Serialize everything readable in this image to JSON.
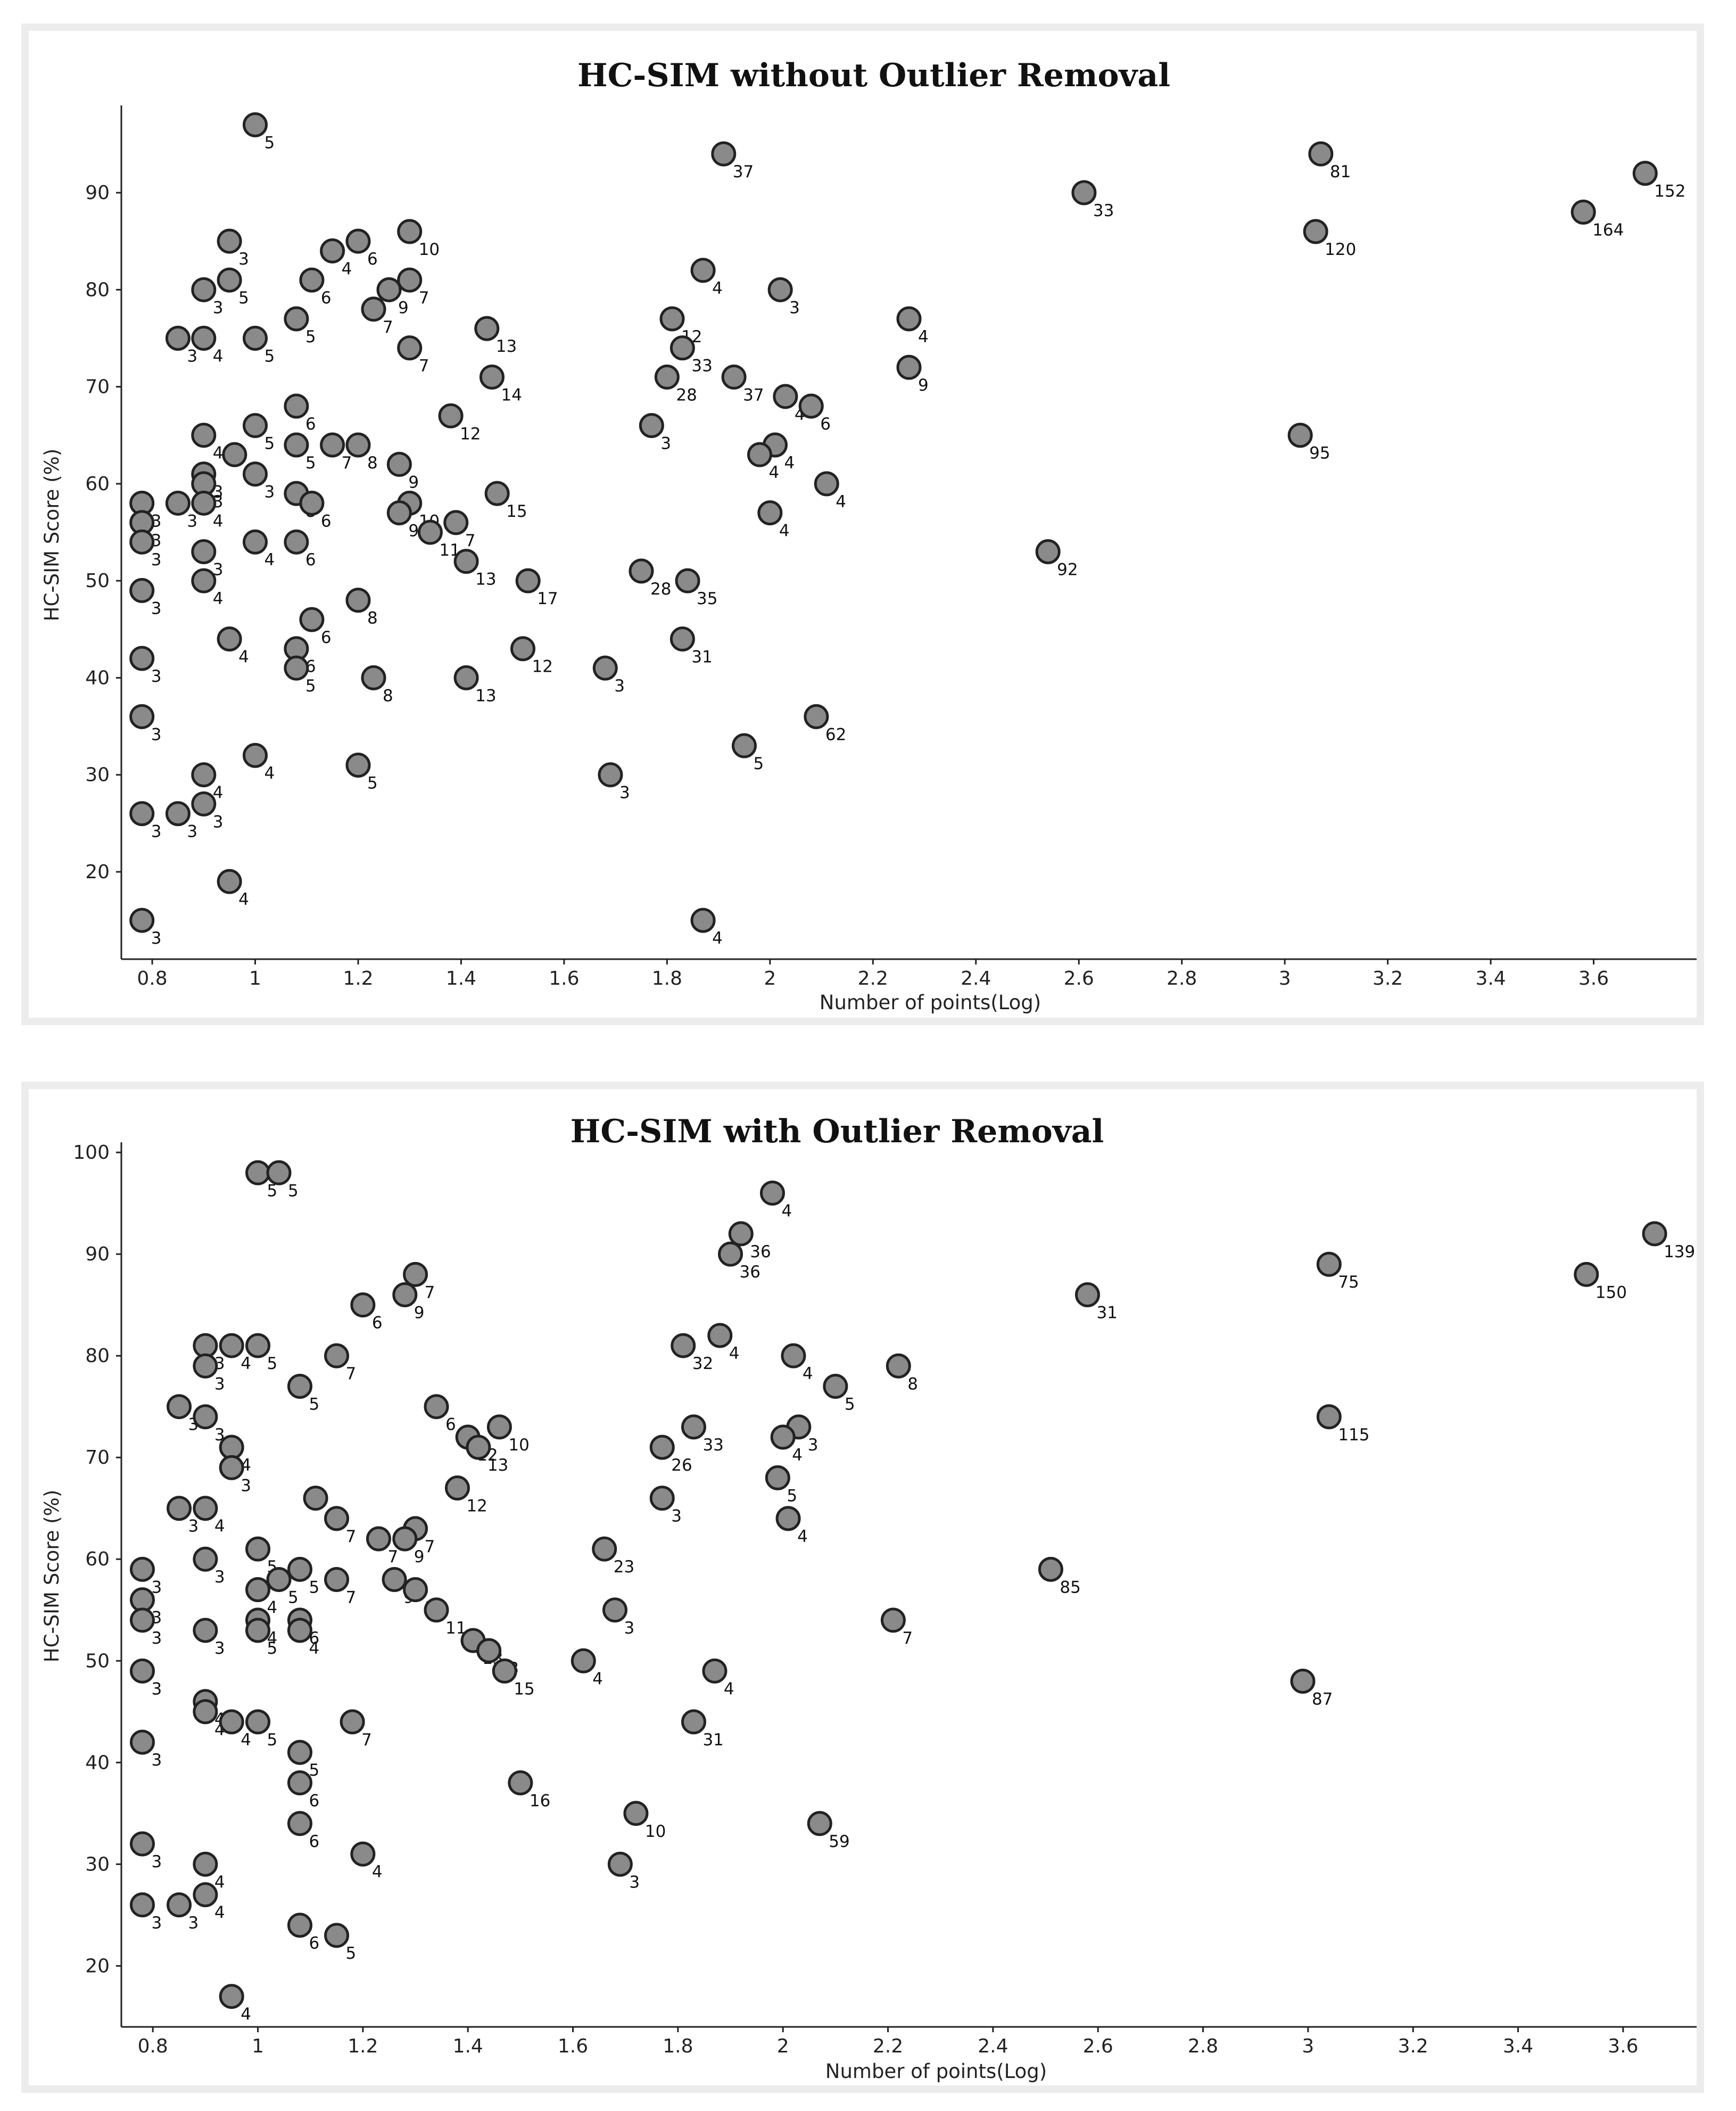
{
  "chart_data": [
    {
      "type": "scatter",
      "title": "HC-SIM without Outlier Removal",
      "xlabel": "Number of points(Log)",
      "ylabel": "HC-SIM Score (%)",
      "xlim": [
        0.74,
        3.8
      ],
      "ylim": [
        11,
        99
      ],
      "x_ticks": [
        0.8,
        1,
        1.2,
        1.4,
        1.6,
        1.8,
        2,
        2.2,
        2.4,
        2.6,
        2.8,
        3,
        3.2,
        3.4,
        3.6
      ],
      "y_ticks": [
        20,
        30,
        40,
        50,
        60,
        70,
        80,
        90
      ],
      "grid": false,
      "marker_fill": "#8a8a8a",
      "marker_edge": "#222222",
      "points": [
        {
          "x": 1.0,
          "y": 97,
          "label": "5"
        },
        {
          "x": 1.91,
          "y": 94,
          "label": "37"
        },
        {
          "x": 3.07,
          "y": 94,
          "label": "81"
        },
        {
          "x": 3.7,
          "y": 92,
          "label": "152"
        },
        {
          "x": 2.61,
          "y": 90,
          "label": "33"
        },
        {
          "x": 3.58,
          "y": 88,
          "label": "164"
        },
        {
          "x": 3.06,
          "y": 86,
          "label": "120"
        },
        {
          "x": 1.3,
          "y": 86,
          "label": "10"
        },
        {
          "x": 0.95,
          "y": 85,
          "label": "3"
        },
        {
          "x": 1.2,
          "y": 85,
          "label": "6"
        },
        {
          "x": 1.15,
          "y": 84,
          "label": "4"
        },
        {
          "x": 1.87,
          "y": 82,
          "label": "4"
        },
        {
          "x": 0.95,
          "y": 81,
          "label": "5"
        },
        {
          "x": 1.11,
          "y": 81,
          "label": "6"
        },
        {
          "x": 1.3,
          "y": 81,
          "label": "7"
        },
        {
          "x": 0.9,
          "y": 80,
          "label": "3"
        },
        {
          "x": 1.26,
          "y": 80,
          "label": "9"
        },
        {
          "x": 2.02,
          "y": 80,
          "label": "3"
        },
        {
          "x": 1.23,
          "y": 78,
          "label": "7"
        },
        {
          "x": 1.08,
          "y": 77,
          "label": "5"
        },
        {
          "x": 1.81,
          "y": 77,
          "label": "12"
        },
        {
          "x": 2.27,
          "y": 77,
          "label": "4"
        },
        {
          "x": 1.45,
          "y": 76,
          "label": "13"
        },
        {
          "x": 0.85,
          "y": 75,
          "label": "3"
        },
        {
          "x": 0.9,
          "y": 75,
          "label": "4"
        },
        {
          "x": 1.0,
          "y": 75,
          "label": "5"
        },
        {
          "x": 1.3,
          "y": 74,
          "label": "7"
        },
        {
          "x": 1.83,
          "y": 74,
          "label": "33"
        },
        {
          "x": 2.27,
          "y": 72,
          "label": "9"
        },
        {
          "x": 1.46,
          "y": 71,
          "label": "14"
        },
        {
          "x": 1.8,
          "y": 71,
          "label": "28"
        },
        {
          "x": 1.93,
          "y": 71,
          "label": "37"
        },
        {
          "x": 2.03,
          "y": 69,
          "label": "4"
        },
        {
          "x": 2.08,
          "y": 68,
          "label": "6"
        },
        {
          "x": 1.08,
          "y": 68,
          "label": "6"
        },
        {
          "x": 1.38,
          "y": 67,
          "label": "12"
        },
        {
          "x": 1.0,
          "y": 66,
          "label": "5"
        },
        {
          "x": 1.77,
          "y": 66,
          "label": "3"
        },
        {
          "x": 3.03,
          "y": 65,
          "label": "95"
        },
        {
          "x": 0.9,
          "y": 65,
          "label": "4"
        },
        {
          "x": 1.08,
          "y": 64,
          "label": "5"
        },
        {
          "x": 1.15,
          "y": 64,
          "label": "7"
        },
        {
          "x": 1.2,
          "y": 64,
          "label": "8"
        },
        {
          "x": 2.01,
          "y": 64,
          "label": "4"
        },
        {
          "x": 0.96,
          "y": 63,
          "label": "4"
        },
        {
          "x": 1.98,
          "y": 63,
          "label": "4"
        },
        {
          "x": 1.28,
          "y": 62,
          "label": "9"
        },
        {
          "x": 0.9,
          "y": 61,
          "label": "3"
        },
        {
          "x": 1.0,
          "y": 61,
          "label": "3"
        },
        {
          "x": 0.9,
          "y": 60,
          "label": "3"
        },
        {
          "x": 2.11,
          "y": 60,
          "label": "4"
        },
        {
          "x": 1.08,
          "y": 59,
          "label": "8"
        },
        {
          "x": 1.47,
          "y": 59,
          "label": "15"
        },
        {
          "x": 0.78,
          "y": 58,
          "label": "3"
        },
        {
          "x": 0.85,
          "y": 58,
          "label": "3"
        },
        {
          "x": 0.9,
          "y": 58,
          "label": "4"
        },
        {
          "x": 1.11,
          "y": 58,
          "label": "6"
        },
        {
          "x": 1.3,
          "y": 58,
          "label": "10"
        },
        {
          "x": 1.28,
          "y": 57,
          "label": "9"
        },
        {
          "x": 2.0,
          "y": 57,
          "label": "4"
        },
        {
          "x": 0.78,
          "y": 56,
          "label": "3"
        },
        {
          "x": 1.39,
          "y": 56,
          "label": "7"
        },
        {
          "x": 1.34,
          "y": 55,
          "label": "11"
        },
        {
          "x": 0.78,
          "y": 54,
          "label": "3"
        },
        {
          "x": 1.0,
          "y": 54,
          "label": "4"
        },
        {
          "x": 1.08,
          "y": 54,
          "label": "6"
        },
        {
          "x": 2.54,
          "y": 53,
          "label": "92"
        },
        {
          "x": 0.9,
          "y": 53,
          "label": "3"
        },
        {
          "x": 1.41,
          "y": 52,
          "label": "13"
        },
        {
          "x": 1.75,
          "y": 51,
          "label": "28"
        },
        {
          "x": 0.9,
          "y": 50,
          "label": "4"
        },
        {
          "x": 1.53,
          "y": 50,
          "label": "17"
        },
        {
          "x": 1.84,
          "y": 50,
          "label": "35"
        },
        {
          "x": 0.78,
          "y": 49,
          "label": "3"
        },
        {
          "x": 1.2,
          "y": 48,
          "label": "8"
        },
        {
          "x": 1.11,
          "y": 46,
          "label": "6"
        },
        {
          "x": 0.95,
          "y": 44,
          "label": "4"
        },
        {
          "x": 1.83,
          "y": 44,
          "label": "31"
        },
        {
          "x": 1.08,
          "y": 43,
          "label": "6"
        },
        {
          "x": 1.52,
          "y": 43,
          "label": "12"
        },
        {
          "x": 0.78,
          "y": 42,
          "label": "3"
        },
        {
          "x": 1.08,
          "y": 41,
          "label": "5"
        },
        {
          "x": 1.68,
          "y": 41,
          "label": "3"
        },
        {
          "x": 1.23,
          "y": 40,
          "label": "8"
        },
        {
          "x": 1.41,
          "y": 40,
          "label": "13"
        },
        {
          "x": 0.78,
          "y": 36,
          "label": "3"
        },
        {
          "x": 2.09,
          "y": 36,
          "label": "62"
        },
        {
          "x": 1.95,
          "y": 33,
          "label": "5"
        },
        {
          "x": 1.0,
          "y": 32,
          "label": "4"
        },
        {
          "x": 1.2,
          "y": 31,
          "label": "5"
        },
        {
          "x": 0.9,
          "y": 30,
          "label": "4"
        },
        {
          "x": 1.69,
          "y": 30,
          "label": "3"
        },
        {
          "x": 0.9,
          "y": 27,
          "label": "3"
        },
        {
          "x": 0.78,
          "y": 26,
          "label": "3"
        },
        {
          "x": 0.85,
          "y": 26,
          "label": "3"
        },
        {
          "x": 0.95,
          "y": 19,
          "label": "4"
        },
        {
          "x": 0.78,
          "y": 15,
          "label": "3"
        },
        {
          "x": 1.87,
          "y": 15,
          "label": "4"
        }
      ]
    },
    {
      "type": "scatter",
      "title": "HC-SIM with Outlier Removal",
      "xlabel": "Number of points(Log)",
      "ylabel": "HC-SIM Score (%)",
      "xlim": [
        0.74,
        3.74
      ],
      "ylim": [
        14,
        101
      ],
      "x_ticks": [
        0.8,
        1,
        1.2,
        1.4,
        1.6,
        1.8,
        2,
        2.2,
        2.4,
        2.6,
        2.8,
        3,
        3.2,
        3.4,
        3.6
      ],
      "y_ticks": [
        20,
        30,
        40,
        50,
        60,
        70,
        80,
        90,
        100
      ],
      "grid": false,
      "marker_fill": "#8a8a8a",
      "marker_edge": "#222222",
      "points": [
        {
          "x": 1.0,
          "y": 98,
          "label": "5"
        },
        {
          "x": 1.04,
          "y": 98,
          "label": "5"
        },
        {
          "x": 1.98,
          "y": 96,
          "label": "4"
        },
        {
          "x": 1.92,
          "y": 92,
          "label": "36"
        },
        {
          "x": 3.66,
          "y": 92,
          "label": "139"
        },
        {
          "x": 1.9,
          "y": 90,
          "label": "36"
        },
        {
          "x": 3.04,
          "y": 89,
          "label": "75"
        },
        {
          "x": 1.3,
          "y": 88,
          "label": "7"
        },
        {
          "x": 3.53,
          "y": 88,
          "label": "150"
        },
        {
          "x": 2.58,
          "y": 86,
          "label": "31"
        },
        {
          "x": 1.28,
          "y": 86,
          "label": "9"
        },
        {
          "x": 1.2,
          "y": 85,
          "label": "6"
        },
        {
          "x": 1.88,
          "y": 82,
          "label": "4"
        },
        {
          "x": 0.9,
          "y": 81,
          "label": "3"
        },
        {
          "x": 0.95,
          "y": 81,
          "label": "4"
        },
        {
          "x": 1.0,
          "y": 81,
          "label": "5"
        },
        {
          "x": 1.81,
          "y": 81,
          "label": "32"
        },
        {
          "x": 1.15,
          "y": 80,
          "label": "7"
        },
        {
          "x": 2.02,
          "y": 80,
          "label": "4"
        },
        {
          "x": 0.9,
          "y": 79,
          "label": "3"
        },
        {
          "x": 2.22,
          "y": 79,
          "label": "8"
        },
        {
          "x": 1.08,
          "y": 77,
          "label": "5"
        },
        {
          "x": 2.1,
          "y": 77,
          "label": "5"
        },
        {
          "x": 0.85,
          "y": 75,
          "label": "3"
        },
        {
          "x": 1.34,
          "y": 75,
          "label": "6"
        },
        {
          "x": 0.9,
          "y": 74,
          "label": "3"
        },
        {
          "x": 3.04,
          "y": 74,
          "label": "115"
        },
        {
          "x": 1.46,
          "y": 73,
          "label": "10"
        },
        {
          "x": 1.83,
          "y": 73,
          "label": "33"
        },
        {
          "x": 2.03,
          "y": 73,
          "label": "3"
        },
        {
          "x": 1.4,
          "y": 72,
          "label": "12"
        },
        {
          "x": 2.0,
          "y": 72,
          "label": "4"
        },
        {
          "x": 0.95,
          "y": 71,
          "label": "4"
        },
        {
          "x": 1.42,
          "y": 71,
          "label": "13"
        },
        {
          "x": 1.77,
          "y": 71,
          "label": "26"
        },
        {
          "x": 0.95,
          "y": 69,
          "label": "3"
        },
        {
          "x": 1.99,
          "y": 68,
          "label": "5"
        },
        {
          "x": 1.38,
          "y": 67,
          "label": "12"
        },
        {
          "x": 1.11,
          "y": 66,
          "label": "6"
        },
        {
          "x": 1.77,
          "y": 66,
          "label": "3"
        },
        {
          "x": 0.85,
          "y": 65,
          "label": "3"
        },
        {
          "x": 0.9,
          "y": 65,
          "label": "4"
        },
        {
          "x": 1.15,
          "y": 64,
          "label": "7"
        },
        {
          "x": 2.01,
          "y": 64,
          "label": "4"
        },
        {
          "x": 1.3,
          "y": 63,
          "label": "7"
        },
        {
          "x": 1.23,
          "y": 62,
          "label": "7"
        },
        {
          "x": 1.28,
          "y": 62,
          "label": "9"
        },
        {
          "x": 1.0,
          "y": 61,
          "label": "5"
        },
        {
          "x": 1.66,
          "y": 61,
          "label": "23"
        },
        {
          "x": 0.9,
          "y": 60,
          "label": "3"
        },
        {
          "x": 0.78,
          "y": 59,
          "label": "3"
        },
        {
          "x": 1.08,
          "y": 59,
          "label": "5"
        },
        {
          "x": 2.51,
          "y": 59,
          "label": "85"
        },
        {
          "x": 1.04,
          "y": 58,
          "label": "5"
        },
        {
          "x": 1.15,
          "y": 58,
          "label": "7"
        },
        {
          "x": 1.26,
          "y": 58,
          "label": "9"
        },
        {
          "x": 1.0,
          "y": 57,
          "label": "4"
        },
        {
          "x": 1.3,
          "y": 57,
          "label": "10"
        },
        {
          "x": 0.78,
          "y": 56,
          "label": "3"
        },
        {
          "x": 1.34,
          "y": 55,
          "label": "11"
        },
        {
          "x": 1.68,
          "y": 55,
          "label": "3"
        },
        {
          "x": 0.78,
          "y": 54,
          "label": "3"
        },
        {
          "x": 1.0,
          "y": 54,
          "label": "4"
        },
        {
          "x": 1.08,
          "y": 54,
          "label": "6"
        },
        {
          "x": 2.21,
          "y": 54,
          "label": "7"
        },
        {
          "x": 0.9,
          "y": 53,
          "label": "3"
        },
        {
          "x": 1.0,
          "y": 53,
          "label": "5"
        },
        {
          "x": 1.08,
          "y": 53,
          "label": "4"
        },
        {
          "x": 1.41,
          "y": 52,
          "label": "13"
        },
        {
          "x": 1.44,
          "y": 51,
          "label": "13"
        },
        {
          "x": 1.62,
          "y": 50,
          "label": "4"
        },
        {
          "x": 0.78,
          "y": 49,
          "label": "3"
        },
        {
          "x": 1.47,
          "y": 49,
          "label": "15"
        },
        {
          "x": 1.87,
          "y": 49,
          "label": "4"
        },
        {
          "x": 2.99,
          "y": 48,
          "label": "87"
        },
        {
          "x": 0.9,
          "y": 46,
          "label": "4"
        },
        {
          "x": 0.9,
          "y": 45,
          "label": "4"
        },
        {
          "x": 0.95,
          "y": 44,
          "label": "4"
        },
        {
          "x": 1.0,
          "y": 44,
          "label": "5"
        },
        {
          "x": 1.18,
          "y": 44,
          "label": "7"
        },
        {
          "x": 1.83,
          "y": 44,
          "label": "31"
        },
        {
          "x": 0.78,
          "y": 42,
          "label": "3"
        },
        {
          "x": 1.08,
          "y": 41,
          "label": "5"
        },
        {
          "x": 1.08,
          "y": 38,
          "label": "6"
        },
        {
          "x": 1.5,
          "y": 38,
          "label": "16"
        },
        {
          "x": 1.72,
          "y": 35,
          "label": "10"
        },
        {
          "x": 1.08,
          "y": 34,
          "label": "6"
        },
        {
          "x": 2.07,
          "y": 34,
          "label": "59"
        },
        {
          "x": 0.78,
          "y": 32,
          "label": "3"
        },
        {
          "x": 1.2,
          "y": 31,
          "label": "4"
        },
        {
          "x": 0.9,
          "y": 30,
          "label": "4"
        },
        {
          "x": 1.69,
          "y": 30,
          "label": "3"
        },
        {
          "x": 0.9,
          "y": 27,
          "label": "4"
        },
        {
          "x": 0.78,
          "y": 26,
          "label": "3"
        },
        {
          "x": 0.85,
          "y": 26,
          "label": "3"
        },
        {
          "x": 1.08,
          "y": 24,
          "label": "6"
        },
        {
          "x": 1.15,
          "y": 23,
          "label": "5"
        },
        {
          "x": 0.95,
          "y": 17,
          "label": "4"
        }
      ]
    }
  ]
}
